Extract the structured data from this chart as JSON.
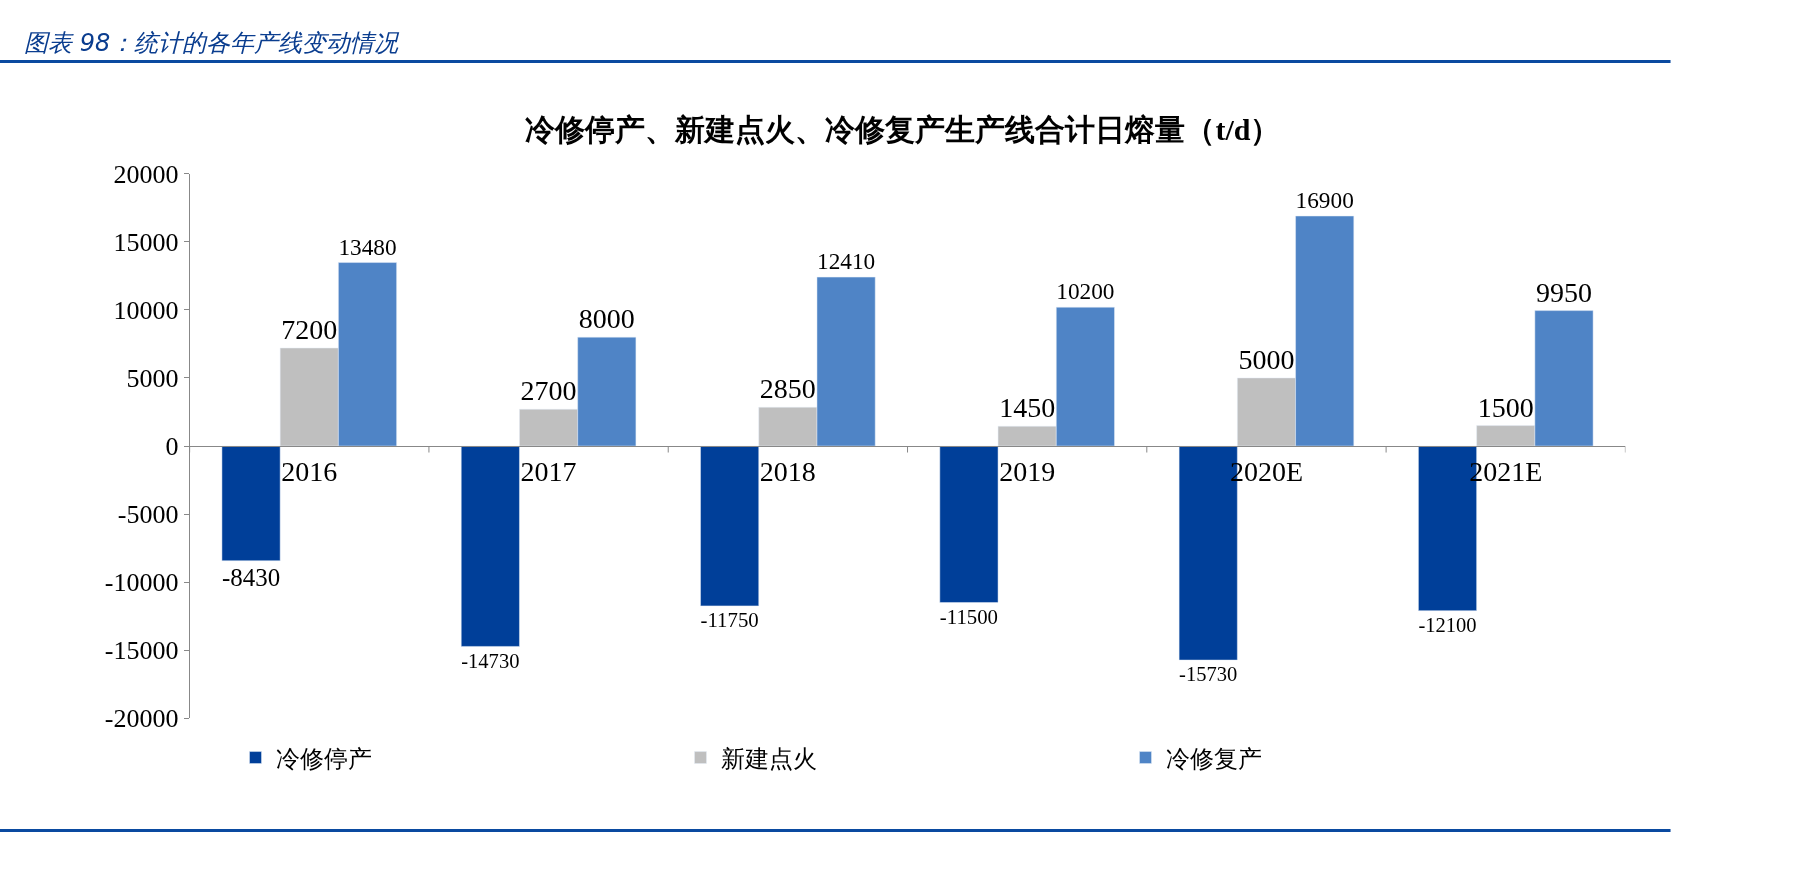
{
  "chart_data": {
    "type": "bar",
    "title": "冷修停产、新建点火、冷修复产生产线合计日熔量（t/d）",
    "annotations": [
      "图表 98：统计的各年产线变动情况"
    ],
    "categories": [
      "2016",
      "2017",
      "2018",
      "2019",
      "2020E",
      "2021E"
    ],
    "series": [
      {
        "name": "冷修停产",
        "color": "#003f99",
        "values": [
          -8430,
          -14730,
          -11750,
          -11500,
          -15730,
          -12100
        ]
      },
      {
        "name": "新建点火",
        "color": "#bfbfbf",
        "values": [
          7200,
          2700,
          2850,
          1450,
          5000,
          1500
        ]
      },
      {
        "name": "冷修复产",
        "color": "#4f84c6",
        "values": [
          13480,
          8000,
          12410,
          10200,
          16900,
          9950
        ]
      }
    ],
    "ylim": [
      -20000,
      20000
    ],
    "yticks": [
      -20000,
      -15000,
      -10000,
      -5000,
      0,
      5000,
      10000,
      15000,
      20000
    ],
    "data_labels": true,
    "legend": "bottom"
  }
}
